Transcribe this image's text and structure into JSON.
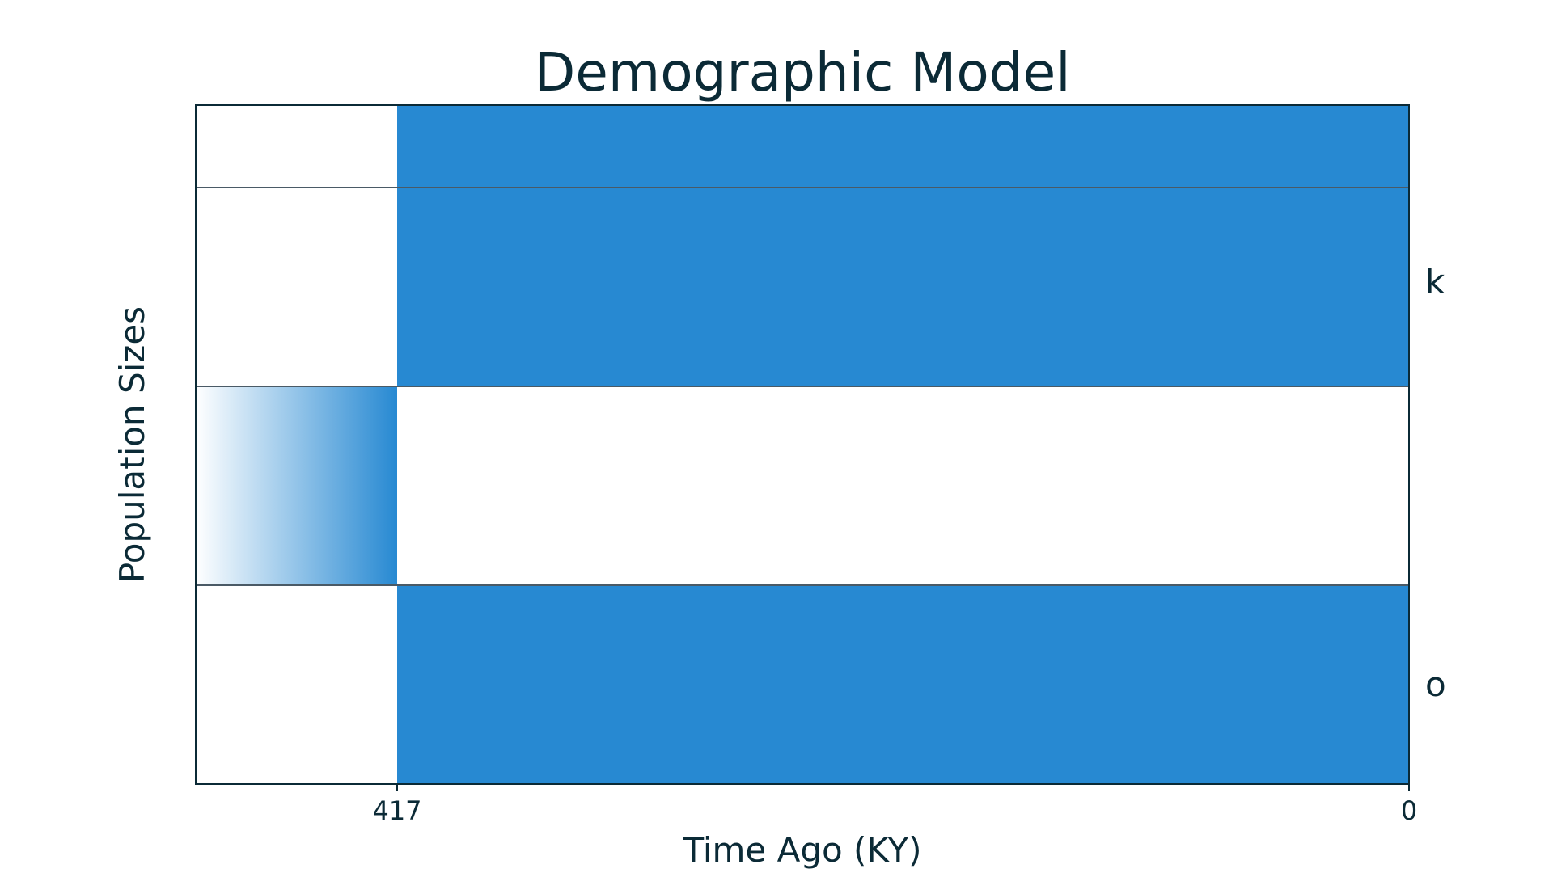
{
  "chart_data": {
    "type": "area",
    "title": "Demographic Model",
    "xlabel": "Time Ago (KY)",
    "ylabel": "Population Sizes",
    "xlim": [
      500,
      0
    ],
    "x_ticks": [
      {
        "value": 417,
        "label": "417"
      },
      {
        "value": 0,
        "label": "0"
      }
    ],
    "populations": [
      {
        "name": "k",
        "band": 2,
        "start": 417,
        "end": 0,
        "fill": "solid"
      },
      {
        "name": "",
        "band": 1,
        "start": 500,
        "end": 417,
        "fill": "gradient",
        "note": "ancestral population fading into split"
      },
      {
        "name": "o",
        "band": 0,
        "start": 417,
        "end": 0,
        "fill": "solid"
      }
    ],
    "split_time": 417,
    "grid": false,
    "legend": "right-side labels"
  },
  "colors": {
    "population": "#2789d2",
    "text": "#0b2a36",
    "axes": "#0b2a36",
    "divider": "#4a5a66"
  }
}
